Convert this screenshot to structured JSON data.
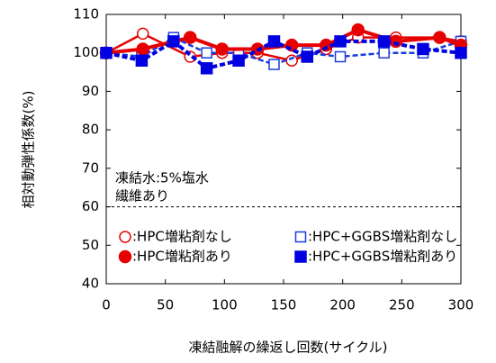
{
  "chart_data": {
    "type": "line",
    "xlabel": "凍結融解の繰返し回数(サイクル)",
    "ylabel": "相対動弾性係数(%)",
    "xlim": [
      0,
      300
    ],
    "xticks": [
      0,
      50,
      100,
      150,
      200,
      250,
      300
    ],
    "ylim": [
      40,
      110
    ],
    "yticks": [
      40,
      50,
      60,
      70,
      80,
      90,
      100,
      110
    ],
    "reference_line": 60,
    "annotations": [
      "凍結水:5%塩水",
      "繊維あり"
    ],
    "series": [
      {
        "name": ":HPC増粘剤なし",
        "color": "#e60000",
        "marker": "circle",
        "filled": false,
        "dashed": false,
        "x": [
          0,
          31,
          71,
          98,
          128,
          157,
          186,
          213,
          245,
          282,
          300
        ],
        "values": [
          100,
          105,
          99,
          100,
          100,
          98,
          101,
          104,
          104,
          104,
          103
        ]
      },
      {
        "name": ":HPC+GGBS増粘剤なし",
        "color": "#1a3cdc",
        "marker": "square",
        "filled": false,
        "dashed": true,
        "x": [
          0,
          30,
          57,
          85,
          112,
          142,
          170,
          198,
          235,
          268,
          300
        ],
        "values": [
          100,
          99,
          104,
          100,
          100,
          97,
          100,
          99,
          100,
          100,
          103
        ]
      },
      {
        "name": ":HPC増粘剤あり",
        "color": "#e60000",
        "marker": "circle",
        "filled": true,
        "dashed": false,
        "x": [
          0,
          31,
          71,
          98,
          128,
          157,
          186,
          213,
          245,
          282,
          300
        ],
        "values": [
          100,
          101,
          104,
          101,
          101,
          102,
          102,
          106,
          103,
          104,
          102
        ]
      },
      {
        "name": ":HPC+GGBS増粘剤あり",
        "color": "#0000e0",
        "marker": "square",
        "filled": true,
        "dashed": true,
        "x": [
          0,
          30,
          57,
          85,
          112,
          142,
          170,
          198,
          235,
          268,
          300
        ],
        "values": [
          100,
          98,
          103,
          96,
          98,
          103,
          99,
          103,
          103,
          101,
          100
        ]
      }
    ]
  }
}
